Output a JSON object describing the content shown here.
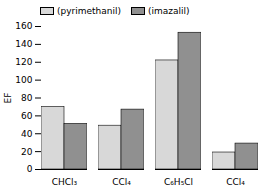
{
  "chart_data": {
    "type": "bar",
    "categories": [
      "CHCl₃",
      "CCl₄",
      "C₆H₅Cl",
      "CCl₄"
    ],
    "series": [
      {
        "name": "(pyrimethanil)",
        "color": "#d8d8d8",
        "values": [
          70,
          49,
          122,
          19
        ]
      },
      {
        "name": "(imazalil)",
        "color": "#909090",
        "values": [
          51,
          67,
          153,
          29
        ]
      }
    ],
    "ylabel": "EF",
    "ylim": [
      0,
      160
    ],
    "yticks": [
      0,
      20,
      40,
      60,
      80,
      100,
      120,
      140,
      160
    ],
    "legend": "upper left",
    "grid": false
  }
}
